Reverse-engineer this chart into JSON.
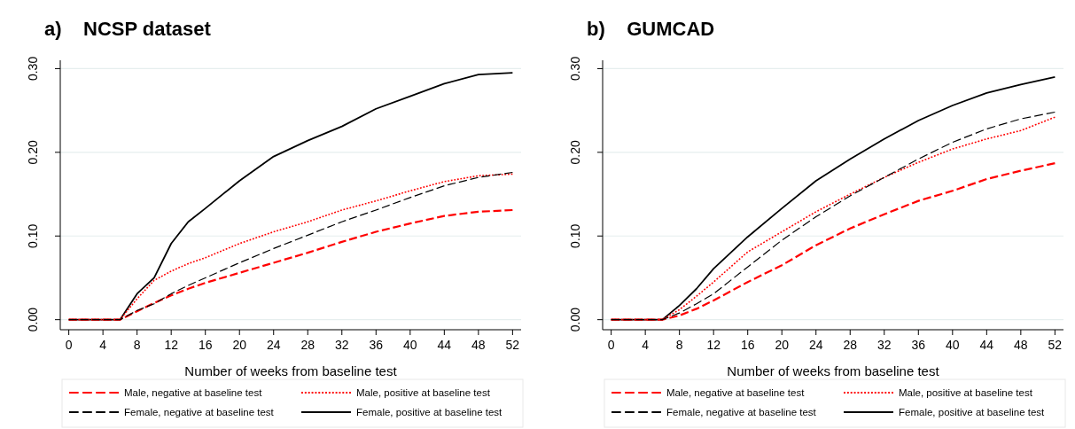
{
  "chart_data": [
    {
      "type": "line",
      "title": "a)    NCSP dataset",
      "xlabel": "Number of weeks from baseline test",
      "x": [
        0,
        6,
        8,
        10,
        12,
        14,
        16,
        20,
        24,
        28,
        32,
        36,
        40,
        44,
        48,
        52
      ],
      "xlim": [
        -1,
        53
      ],
      "xticks": [
        0,
        4,
        8,
        12,
        16,
        20,
        24,
        28,
        32,
        36,
        40,
        44,
        48,
        52
      ],
      "ylim": [
        -0.012,
        0.31
      ],
      "yticks": [
        {
          "value": 0,
          "label": "0.00"
        },
        {
          "value": 0.1,
          "label": "0.10"
        },
        {
          "value": 0.2,
          "label": "0.20"
        },
        {
          "value": 0.3,
          "label": "0.30"
        }
      ],
      "grid": "y",
      "legend": "bottom",
      "series": [
        {
          "name": "Male, negative at baseline test",
          "color": "#ff0000",
          "line_style": "dashed",
          "values": [
            0,
            0,
            0.01,
            0.02,
            0.029,
            0.037,
            0.044,
            0.056,
            0.068,
            0.08,
            0.093,
            0.105,
            0.115,
            0.124,
            0.129,
            0.131
          ]
        },
        {
          "name": "Male, positive at baseline test",
          "color": "#ff0000",
          "line_style": "dotted",
          "values": [
            0,
            0,
            0.025,
            0.047,
            0.058,
            0.067,
            0.074,
            0.091,
            0.105,
            0.117,
            0.131,
            0.142,
            0.154,
            0.165,
            0.172,
            0.174
          ]
        },
        {
          "name": "Female, negative at baseline test",
          "color": "#000000",
          "line_style": "dashed",
          "values": [
            0,
            0,
            0.011,
            0.019,
            0.031,
            0.041,
            0.05,
            0.068,
            0.085,
            0.101,
            0.117,
            0.131,
            0.146,
            0.16,
            0.17,
            0.176
          ]
        },
        {
          "name": "Female, positive at baseline test",
          "color": "#000000",
          "line_style": "solid",
          "values": [
            0,
            0,
            0.031,
            0.05,
            0.091,
            0.117,
            0.133,
            0.166,
            0.195,
            0.214,
            0.231,
            0.252,
            0.267,
            0.282,
            0.293,
            0.295
          ]
        }
      ]
    },
    {
      "type": "line",
      "title": "b)    GUMCAD",
      "xlabel": "Number of weeks from baseline test",
      "x": [
        0,
        6,
        8,
        10,
        12,
        16,
        20,
        24,
        28,
        32,
        36,
        40,
        44,
        48,
        52
      ],
      "xlim": [
        -1,
        53
      ],
      "xticks": [
        0,
        4,
        8,
        12,
        16,
        20,
        24,
        28,
        32,
        36,
        40,
        44,
        48,
        52
      ],
      "ylim": [
        -0.012,
        0.31
      ],
      "yticks": [
        {
          "value": 0,
          "label": "0.00"
        },
        {
          "value": 0.1,
          "label": "0.10"
        },
        {
          "value": 0.2,
          "label": "0.20"
        },
        {
          "value": 0.3,
          "label": "0.30"
        }
      ],
      "grid": "y",
      "legend": "bottom",
      "series": [
        {
          "name": "Male, negative at baseline test",
          "color": "#ff0000",
          "line_style": "dashed",
          "values": [
            0,
            0,
            0.005,
            0.013,
            0.023,
            0.045,
            0.065,
            0.089,
            0.109,
            0.126,
            0.142,
            0.154,
            0.168,
            0.178,
            0.187
          ]
        },
        {
          "name": "Male, positive at baseline test",
          "color": "#ff0000",
          "line_style": "dotted",
          "values": [
            0,
            0,
            0.012,
            0.028,
            0.045,
            0.081,
            0.105,
            0.129,
            0.15,
            0.17,
            0.188,
            0.204,
            0.216,
            0.226,
            0.242
          ]
        },
        {
          "name": "Female, negative at baseline test",
          "color": "#000000",
          "line_style": "dashed",
          "values": [
            0,
            0,
            0.008,
            0.019,
            0.031,
            0.063,
            0.095,
            0.123,
            0.148,
            0.17,
            0.192,
            0.212,
            0.228,
            0.24,
            0.248
          ]
        },
        {
          "name": "Female, positive at baseline test",
          "color": "#000000",
          "line_style": "solid",
          "values": [
            0,
            0,
            0.017,
            0.037,
            0.061,
            0.099,
            0.133,
            0.166,
            0.192,
            0.216,
            0.238,
            0.256,
            0.271,
            0.281,
            0.29
          ]
        }
      ]
    }
  ]
}
